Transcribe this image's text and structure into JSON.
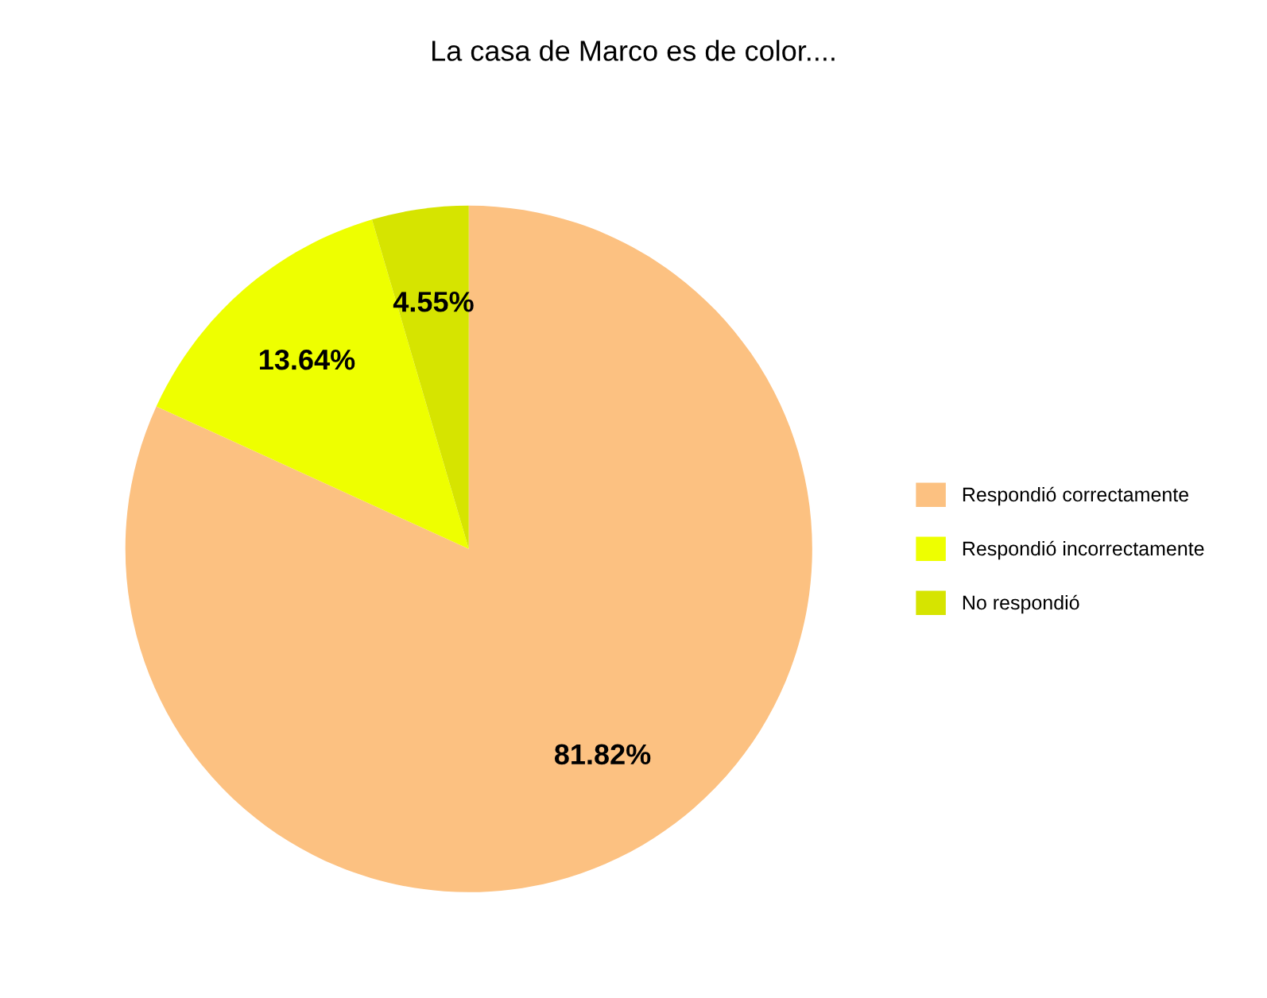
{
  "chart_data": {
    "type": "pie",
    "title": "La casa de Marco es de color....",
    "categories": [
      "Respondió correctamente",
      "Respondió incorrectamente",
      "No respondió"
    ],
    "values": [
      81.82,
      13.64,
      4.55
    ],
    "colors": [
      "#fcc181",
      "#eeff00",
      "#d6e400"
    ],
    "value_labels": [
      "81.82%",
      "13.64%",
      "4.55%"
    ],
    "legend": "right"
  }
}
